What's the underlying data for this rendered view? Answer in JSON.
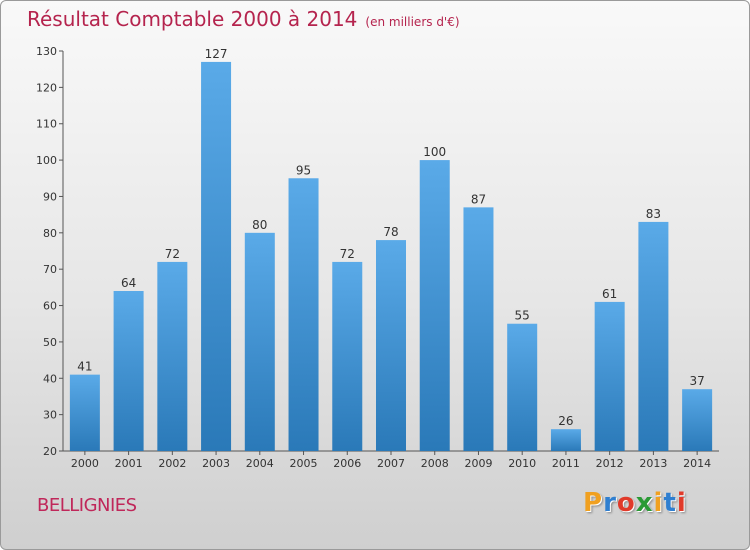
{
  "chart_data": {
    "type": "bar",
    "title": "Résultat Comptable 2000 à 2014",
    "subtitle": "(en milliers d'€)",
    "categories": [
      "2000",
      "2001",
      "2002",
      "2003",
      "2004",
      "2005",
      "2006",
      "2007",
      "2008",
      "2009",
      "2010",
      "2011",
      "2012",
      "2013",
      "2014"
    ],
    "values": [
      41,
      64,
      72,
      127,
      80,
      95,
      72,
      78,
      100,
      87,
      55,
      26,
      61,
      83,
      37
    ],
    "ylim": [
      20,
      130
    ],
    "yticks": [
      20,
      30,
      40,
      50,
      60,
      70,
      80,
      90,
      100,
      110,
      120,
      130
    ],
    "xlabel": "",
    "ylabel": "",
    "grid": false,
    "bar_color_top": "#5aaae8",
    "bar_color_bottom": "#2a79b8"
  },
  "footer": {
    "town": "BELLIGNIES",
    "logo_letters": [
      "P",
      "r",
      "o",
      "x",
      "i",
      "t",
      "i"
    ],
    "logo_colors": [
      "#f0a020",
      "#2f7fd0",
      "#e03a2a",
      "#2a9a35",
      "#f0a020",
      "#2f7fd0",
      "#e03a2a"
    ]
  },
  "colors": {
    "title": "#b5244e",
    "axis": "#555555"
  }
}
